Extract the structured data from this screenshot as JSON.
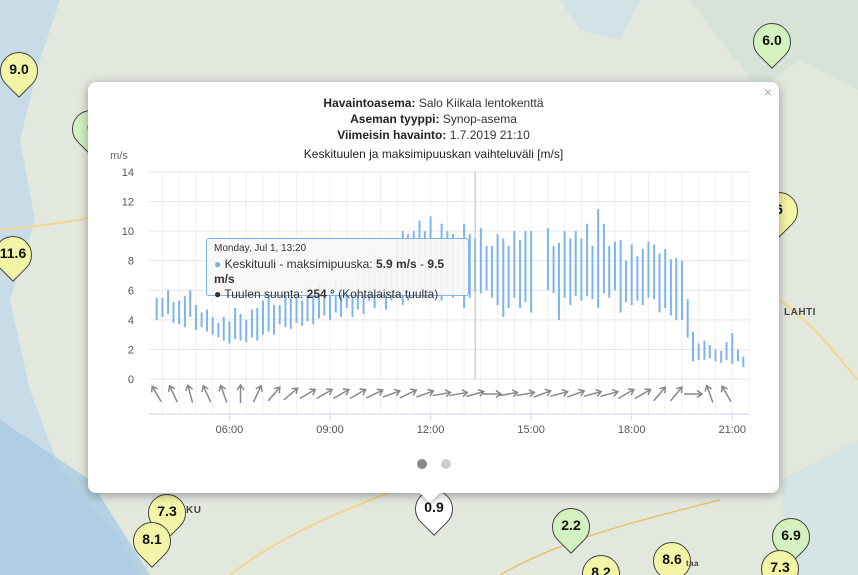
{
  "map": {
    "markers": [
      {
        "value": "9.0",
        "color": "#f3f5a6"
      },
      {
        "value": "6.0",
        "color": "#d4f1c0"
      },
      {
        "value": "6",
        "color": "#d4f1c0"
      },
      {
        "value": "11.6",
        "color": "#f3f5a6"
      },
      {
        "value": "6",
        "color": "#f3f5a6"
      },
      {
        "value": "7.3",
        "color": "#f3f5a6"
      },
      {
        "value": "8.1",
        "color": "#f3f5a6"
      },
      {
        "value": "0.9",
        "color": "#ffffff"
      },
      {
        "value": "2.2",
        "color": "#d4f1c0"
      },
      {
        "value": "8.6",
        "color": "#f3f5a6"
      },
      {
        "value": "8.2",
        "color": "#f3f5a6"
      },
      {
        "value": "6.9",
        "color": "#d4f1c0"
      },
      {
        "value": "7.3",
        "color": "#f3f5a6"
      }
    ],
    "cities": [
      "LAHTI",
      "KU",
      "taa"
    ]
  },
  "popup": {
    "station_label": "Havaintoasema:",
    "station_value": "Salo Kiikala lentokenttä",
    "type_label": "Aseman tyyppi:",
    "type_value": "Synop-asema",
    "latest_label": "Viimeisin havainto:",
    "latest_value": "1.7.2019 21:10",
    "close_icon": "×"
  },
  "tooltip": {
    "date": "Monday, Jul 1, 13:20",
    "wind_label": "Keskituuli - maksimipuuska:",
    "wind_min": "5.9 m/s",
    "wind_sep": "-",
    "wind_max": "9.5 m/s",
    "dir_label": "Tuulen suunta:",
    "dir_value": "254 °",
    "dir_note": "(Kohtalaista tuulta)"
  },
  "chart_data": {
    "type": "bar",
    "title": "Keskituulen ja maksimipuuskan vaihteluväli [m/s]",
    "ylabel": "m/s",
    "ylim": [
      0,
      14
    ],
    "yticks": [
      "0",
      "2",
      "4",
      "6",
      "8",
      "10",
      "12",
      "14"
    ],
    "xticks": [
      {
        "t": 6,
        "label": "06:00"
      },
      {
        "t": 9,
        "label": "09:00"
      },
      {
        "t": 12,
        "label": "12:00"
      },
      {
        "t": 15,
        "label": "15:00"
      },
      {
        "t": 18,
        "label": "18:00"
      },
      {
        "t": 21,
        "label": "21:00"
      }
    ],
    "xlim": [
      3.6,
      21.5
    ],
    "series_color": "#7cb5ec",
    "crosshair_t": 13.33,
    "ranges": [
      [
        3.83,
        4.0,
        5.5
      ],
      [
        4.0,
        4.2,
        5.5
      ],
      [
        4.17,
        4.4,
        6.0
      ],
      [
        4.33,
        3.8,
        5.2
      ],
      [
        4.5,
        3.7,
        5.3
      ],
      [
        4.67,
        3.5,
        5.6
      ],
      [
        4.83,
        4.2,
        6.0
      ],
      [
        5.0,
        3.3,
        5.0
      ],
      [
        5.17,
        3.5,
        4.5
      ],
      [
        5.33,
        3.2,
        4.7
      ],
      [
        5.5,
        3.0,
        4.2
      ],
      [
        5.67,
        2.8,
        3.8
      ],
      [
        5.83,
        2.6,
        4.2
      ],
      [
        6.0,
        2.4,
        3.9
      ],
      [
        6.17,
        2.7,
        4.8
      ],
      [
        6.33,
        2.6,
        4.4
      ],
      [
        6.5,
        2.5,
        4.0
      ],
      [
        6.67,
        2.8,
        4.7
      ],
      [
        6.83,
        2.6,
        4.8
      ],
      [
        7.0,
        3.0,
        5.3
      ],
      [
        7.17,
        3.2,
        5.6
      ],
      [
        7.33,
        3.0,
        5.0
      ],
      [
        7.5,
        3.7,
        5.0
      ],
      [
        7.67,
        3.5,
        5.9
      ],
      [
        7.83,
        3.4,
        5.5
      ],
      [
        8.0,
        3.8,
        5.5
      ],
      [
        8.17,
        3.6,
        5.3
      ],
      [
        8.33,
        3.9,
        6.3
      ],
      [
        8.5,
        3.7,
        5.8
      ],
      [
        8.67,
        4.1,
        6.5
      ],
      [
        8.83,
        4.3,
        6.3
      ],
      [
        9.0,
        4.0,
        6.0
      ],
      [
        9.17,
        4.5,
        6.8
      ],
      [
        9.33,
        4.2,
        6.5
      ],
      [
        9.5,
        4.8,
        6.3
      ],
      [
        9.67,
        4.2,
        6.5
      ],
      [
        9.83,
        4.7,
        7.0
      ],
      [
        10.0,
        4.4,
        7.0
      ],
      [
        10.17,
        5.3,
        7.6
      ],
      [
        10.33,
        4.8,
        8.5
      ],
      [
        10.5,
        5.5,
        7.0
      ],
      [
        10.67,
        4.7,
        8.0
      ],
      [
        10.83,
        5.3,
        8.2
      ],
      [
        11.0,
        5.5,
        9.5
      ],
      [
        11.17,
        5.0,
        10.0
      ],
      [
        11.33,
        5.3,
        9.8
      ],
      [
        11.5,
        5.7,
        10.0
      ],
      [
        11.67,
        6.0,
        10.7
      ],
      [
        11.83,
        5.5,
        10.0
      ],
      [
        12.0,
        5.8,
        11.0
      ],
      [
        12.17,
        6.5,
        9.5
      ],
      [
        12.33,
        5.3,
        10.5
      ],
      [
        12.5,
        6.0,
        10.0
      ],
      [
        12.67,
        5.5,
        9.8
      ],
      [
        12.83,
        6.2,
        9.0
      ],
      [
        13.0,
        4.8,
        10.5
      ],
      [
        13.17,
        5.5,
        9.8
      ],
      [
        13.33,
        5.9,
        9.5
      ],
      [
        13.5,
        5.8,
        10.2
      ],
      [
        13.67,
        6.0,
        9.0
      ],
      [
        13.83,
        5.5,
        9.0
      ],
      [
        14.0,
        5.0,
        9.8
      ],
      [
        14.17,
        4.2,
        9.5
      ],
      [
        14.33,
        4.8,
        9.0
      ],
      [
        14.5,
        5.5,
        10.0
      ],
      [
        14.67,
        4.8,
        9.4
      ],
      [
        14.83,
        5.2,
        10.0
      ],
      [
        15.0,
        4.5,
        10.0
      ],
      [
        15.5,
        6.0,
        10.2
      ],
      [
        15.67,
        5.8,
        9.0
      ],
      [
        15.83,
        4.0,
        9.2
      ],
      [
        16.0,
        5.5,
        10.0
      ],
      [
        16.17,
        5.0,
        9.5
      ],
      [
        16.33,
        5.6,
        10.0
      ],
      [
        16.5,
        5.3,
        9.5
      ],
      [
        16.67,
        5.6,
        10.5
      ],
      [
        16.83,
        5.4,
        9.0
      ],
      [
        17.0,
        4.8,
        11.5
      ],
      [
        17.17,
        5.8,
        10.5
      ],
      [
        17.33,
        5.5,
        9.0
      ],
      [
        17.5,
        6.0,
        9.3
      ],
      [
        17.67,
        4.5,
        9.4
      ],
      [
        17.83,
        5.2,
        8.0
      ],
      [
        18.0,
        5.0,
        9.1
      ],
      [
        18.17,
        5.3,
        8.3
      ],
      [
        18.33,
        5.0,
        8.8
      ],
      [
        18.5,
        5.5,
        9.3
      ],
      [
        18.67,
        5.4,
        9.1
      ],
      [
        18.83,
        4.5,
        8.5
      ],
      [
        19.0,
        4.8,
        8.8
      ],
      [
        19.17,
        4.3,
        8.1
      ],
      [
        19.33,
        4.0,
        8.2
      ],
      [
        19.5,
        4.0,
        8.0
      ],
      [
        19.67,
        2.8,
        5.4
      ],
      [
        19.83,
        1.2,
        3.2
      ],
      [
        20.0,
        1.3,
        2.4
      ],
      [
        20.17,
        1.3,
        2.6
      ],
      [
        20.33,
        1.4,
        2.3
      ],
      [
        20.5,
        1.2,
        2.0
      ],
      [
        20.67,
        1.1,
        1.9
      ],
      [
        20.83,
        1.3,
        2.5
      ],
      [
        21.0,
        1.0,
        3.1
      ],
      [
        21.17,
        1.2,
        2.0
      ],
      [
        21.33,
        0.8,
        1.5
      ]
    ],
    "directions": [
      [
        3.83,
        330
      ],
      [
        4.33,
        335
      ],
      [
        4.83,
        345
      ],
      [
        5.33,
        335
      ],
      [
        5.83,
        340
      ],
      [
        6.33,
        0
      ],
      [
        6.83,
        25
      ],
      [
        7.33,
        40
      ],
      [
        7.83,
        50
      ],
      [
        8.33,
        60
      ],
      [
        8.83,
        60
      ],
      [
        9.33,
        60
      ],
      [
        9.83,
        60
      ],
      [
        10.33,
        65
      ],
      [
        10.83,
        70
      ],
      [
        11.33,
        65
      ],
      [
        11.83,
        70
      ],
      [
        12.33,
        80
      ],
      [
        12.83,
        80
      ],
      [
        13.33,
        74
      ],
      [
        13.83,
        90
      ],
      [
        14.33,
        80
      ],
      [
        14.83,
        80
      ],
      [
        15.33,
        70
      ],
      [
        15.83,
        75
      ],
      [
        16.33,
        70
      ],
      [
        16.83,
        75
      ],
      [
        17.33,
        75
      ],
      [
        17.83,
        60
      ],
      [
        18.33,
        60
      ],
      [
        18.83,
        40
      ],
      [
        19.33,
        40
      ],
      [
        19.83,
        90
      ],
      [
        20.33,
        340
      ],
      [
        20.83,
        330
      ]
    ]
  },
  "pager": {
    "active": 0,
    "count": 2
  }
}
